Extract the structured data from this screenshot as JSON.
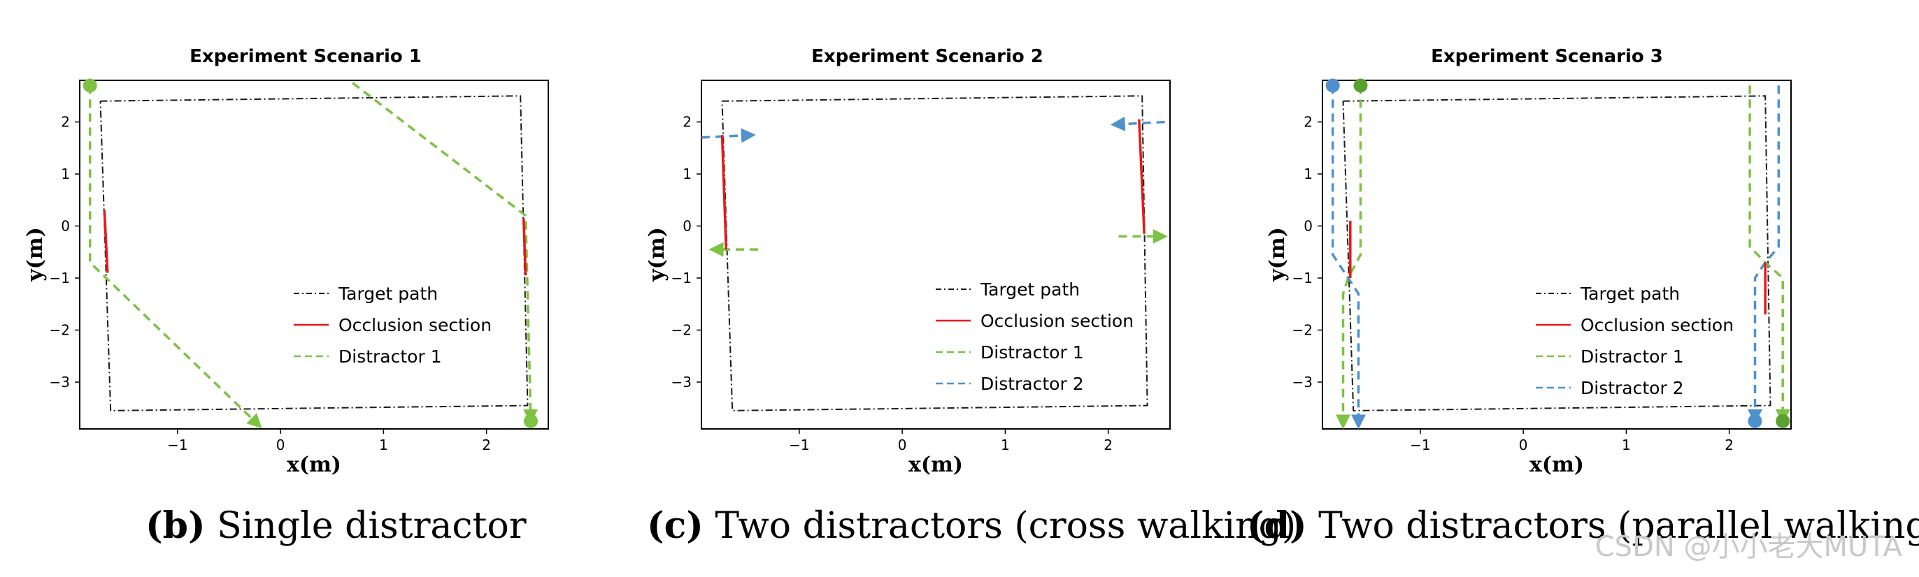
{
  "chart_data": [
    {
      "type": "line",
      "title": "Experiment Scenario 1",
      "xlabel": "x(m)",
      "ylabel": "y(m)",
      "xlim": [
        -1.95,
        2.6
      ],
      "ylim": [
        -3.9,
        2.8
      ],
      "xticks": [
        "−1",
        "0",
        "1",
        "2"
      ],
      "yticks": [
        "2",
        "1",
        "0",
        "−1",
        "−2",
        "−3"
      ],
      "xtick_values": [
        -1,
        0,
        1,
        2
      ],
      "ytick_values": [
        2,
        1,
        0,
        -1,
        -2,
        -3
      ],
      "grid": false,
      "legend_position": "lower-right",
      "legend": [
        {
          "label": "Target path",
          "style": "target"
        },
        {
          "label": "Occlusion section",
          "style": "occlusion"
        },
        {
          "label": "Distractor 1",
          "style": "d1"
        }
      ],
      "series": [
        {
          "name": "Target path",
          "style": "target",
          "x": [
            -1.75,
            2.33,
            2.4,
            -1.65,
            -1.75
          ],
          "y": [
            2.4,
            2.5,
            -3.45,
            -3.55,
            2.4
          ]
        },
        {
          "name": "Occlusion section",
          "style": "occlusion",
          "x": [
            -1.71,
            -1.68
          ],
          "y": [
            0.3,
            -0.9
          ]
        },
        {
          "name": "Occlusion section",
          "style": "occlusion",
          "x": [
            2.36,
            2.38
          ],
          "y": [
            0.15,
            -0.95
          ]
        },
        {
          "name": "Distractor 1",
          "style": "d1",
          "x": [
            -1.85,
            -1.85,
            -0.2
          ],
          "y": [
            2.7,
            -0.7,
            -3.85
          ]
        },
        {
          "name": "Distractor 1",
          "style": "d1",
          "x": [
            0.7,
            2.38,
            2.43
          ],
          "y": [
            2.75,
            0.2,
            -3.75
          ]
        }
      ],
      "markers": [
        {
          "style": "d1",
          "x": -1.85,
          "y": 2.7
        },
        {
          "style": "d1",
          "x": 2.43,
          "y": -3.75
        }
      ]
    },
    {
      "type": "line",
      "title": "Experiment Scenario 2",
      "xlabel": "x(m)",
      "ylabel": "y(m)",
      "xlim": [
        -1.95,
        2.6
      ],
      "ylim": [
        -3.9,
        2.8
      ],
      "xticks": [
        "−1",
        "0",
        "1",
        "2"
      ],
      "yticks": [
        "2",
        "1",
        "0",
        "−1",
        "−2",
        "−3"
      ],
      "xtick_values": [
        -1,
        0,
        1,
        2
      ],
      "ytick_values": [
        2,
        1,
        0,
        -1,
        -2,
        -3
      ],
      "grid": false,
      "legend_position": "lower-right",
      "legend": [
        {
          "label": "Target path",
          "style": "target"
        },
        {
          "label": "Occlusion section",
          "style": "occlusion"
        },
        {
          "label": "Distractor 1",
          "style": "d1"
        },
        {
          "label": "Distractor 2",
          "style": "d2"
        }
      ],
      "series": [
        {
          "name": "Target path",
          "style": "target",
          "x": [
            -1.75,
            2.33,
            2.38,
            -1.65,
            -1.75
          ],
          "y": [
            2.4,
            2.5,
            -3.45,
            -3.55,
            2.4
          ]
        },
        {
          "name": "Occlusion section",
          "style": "occlusion",
          "x": [
            -1.75,
            -1.71
          ],
          "y": [
            1.75,
            -0.45
          ]
        },
        {
          "name": "Occlusion section",
          "style": "occlusion",
          "x": [
            2.3,
            2.35
          ],
          "y": [
            2.05,
            -0.15
          ]
        },
        {
          "name": "Distractor 2",
          "style": "d2",
          "x": [
            -1.95,
            -1.45
          ],
          "y": [
            1.7,
            1.75
          ]
        },
        {
          "name": "Distractor 2",
          "style": "d2",
          "x": [
            2.55,
            2.05
          ],
          "y": [
            2.0,
            1.95
          ]
        },
        {
          "name": "Distractor 1",
          "style": "d1",
          "x": [
            -1.4,
            -1.85
          ],
          "y": [
            -0.45,
            -0.45
          ]
        },
        {
          "name": "Distractor 1",
          "style": "d1",
          "x": [
            2.1,
            2.55
          ],
          "y": [
            -0.2,
            -0.2
          ]
        }
      ],
      "markers": []
    },
    {
      "type": "line",
      "title": "Experiment Scenario 3",
      "xlabel": "x(m)",
      "ylabel": "y(m)",
      "xlim": [
        -1.95,
        2.6
      ],
      "ylim": [
        -3.9,
        2.8
      ],
      "xticks": [
        "−1",
        "0",
        "1",
        "2"
      ],
      "yticks": [
        "2",
        "1",
        "0",
        "−1",
        "−2",
        "−3"
      ],
      "xtick_values": [
        -1,
        0,
        1,
        2
      ],
      "ytick_values": [
        2,
        1,
        0,
        -1,
        -2,
        -3
      ],
      "grid": false,
      "legend_position": "lower-right",
      "legend": [
        {
          "label": "Target path",
          "style": "target"
        },
        {
          "label": "Occlusion section",
          "style": "occlusion"
        },
        {
          "label": "Distractor 1",
          "style": "d1"
        },
        {
          "label": "Distractor 2",
          "style": "d2"
        }
      ],
      "series": [
        {
          "name": "Target path",
          "style": "target",
          "x": [
            -1.75,
            2.35,
            2.4,
            -1.65,
            -1.75
          ],
          "y": [
            2.4,
            2.5,
            -3.45,
            -3.55,
            2.4
          ]
        },
        {
          "name": "Occlusion section",
          "style": "occlusion",
          "x": [
            -1.68,
            -1.68
          ],
          "y": [
            0.1,
            -1.0
          ]
        },
        {
          "name": "Occlusion section",
          "style": "occlusion",
          "x": [
            2.35,
            2.35
          ],
          "y": [
            -0.7,
            -1.7
          ]
        },
        {
          "name": "Distractor 1",
          "style": "d1",
          "x": [
            -1.58,
            -1.58,
            -1.7,
            -1.75,
            -1.75
          ],
          "y": [
            2.7,
            -0.55,
            -1.0,
            -1.3,
            -3.85
          ]
        },
        {
          "name": "Distractor 2",
          "style": "d2",
          "x": [
            -1.85,
            -1.85,
            -1.7,
            -1.6,
            -1.6
          ],
          "y": [
            2.7,
            -0.55,
            -1.0,
            -1.3,
            -3.85
          ]
        },
        {
          "name": "Distractor 1",
          "style": "d1",
          "x": [
            2.2,
            2.2,
            2.35,
            2.52,
            2.52
          ],
          "y": [
            2.7,
            -0.4,
            -0.7,
            -1.0,
            -3.75
          ]
        },
        {
          "name": "Distractor 2",
          "style": "d2",
          "x": [
            2.48,
            2.48,
            2.35,
            2.25,
            2.25
          ],
          "y": [
            2.7,
            -0.4,
            -0.7,
            -1.0,
            -3.75
          ]
        }
      ],
      "markers": [
        {
          "style": "d2",
          "x": -1.85,
          "y": 2.7
        },
        {
          "style": "d1",
          "x": -1.58,
          "y": 2.7
        },
        {
          "style": "d2",
          "x": 2.25,
          "y": -3.75
        },
        {
          "style": "d1",
          "x": 2.52,
          "y": -3.75
        }
      ]
    }
  ],
  "styles": {
    "target": {
      "color": "#1a1a1a"
    },
    "occlusion": {
      "color": "#e8171a"
    },
    "d1": {
      "color": "#7dc242"
    },
    "d2": {
      "color": "#4f91cd"
    }
  },
  "marker_colors": {
    "d1": "#7dc242",
    "d2": "#4f91cd",
    "d1_dark": "#5aa12f"
  },
  "captions": [
    {
      "label": "(b)",
      "text": " Single distractor"
    },
    {
      "label": "(c)",
      "text": " Two distractors (cross walking)"
    },
    {
      "label": "(d)",
      "text": " Two distractors (parallel walking)"
    }
  ],
  "watermark": "CSDN @小小老大MUTA"
}
